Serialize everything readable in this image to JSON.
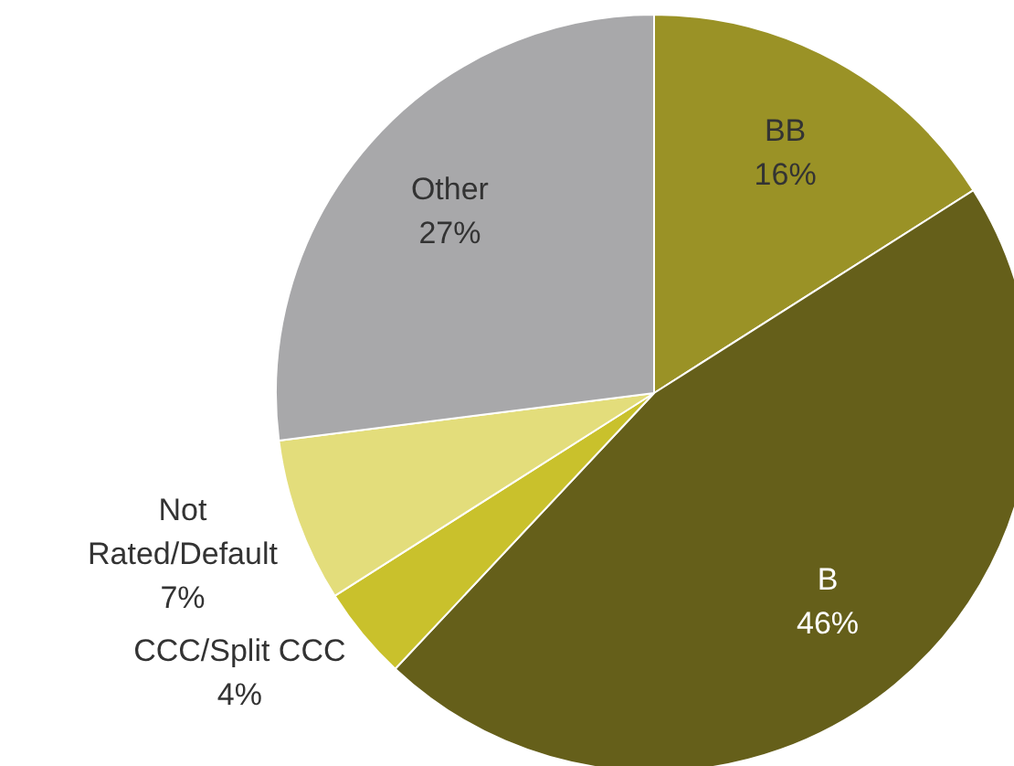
{
  "chart_data": {
    "type": "pie",
    "categories": [
      "BB",
      "B",
      "CCC/Split CCC",
      "Not Rated/Default",
      "Other"
    ],
    "values": [
      16,
      46,
      4,
      7,
      27
    ],
    "colors": [
      "#9a9226",
      "#655f1a",
      "#c9c12c",
      "#e3dd7b",
      "#a8a8aa"
    ],
    "value_labels": [
      "16%",
      "46%",
      "4%",
      "7%",
      "27%"
    ],
    "legend": false
  }
}
